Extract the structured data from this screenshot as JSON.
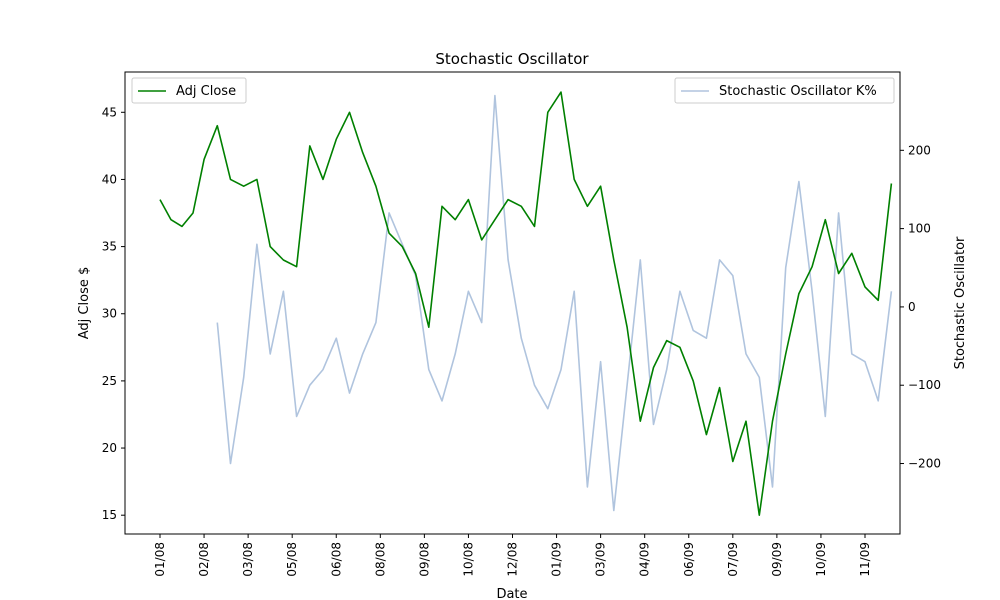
{
  "chart_data": {
    "type": "line",
    "title": "Stochastic Oscillator",
    "xlabel": "Date",
    "ylabel_left": "Adj Close $",
    "ylabel_right": "Stochastic Oscillator",
    "x_tick_labels": [
      "01/08",
      "02/08",
      "03/08",
      "05/08",
      "06/08",
      "08/08",
      "09/08",
      "10/08",
      "12/08",
      "01/09",
      "03/09",
      "04/09",
      "06/09",
      "07/09",
      "09/09",
      "10/09",
      "11/09"
    ],
    "ylim_left": [
      13.6,
      48.0
    ],
    "yticks_left": [
      15,
      20,
      25,
      30,
      35,
      40,
      45
    ],
    "ylim_right": [
      -290,
      300
    ],
    "yticks_right": [
      -200,
      -100,
      0,
      100,
      200
    ],
    "grid": false,
    "colors": {
      "adj_close": "#008000",
      "stochastic": "#b0c4de"
    },
    "series": [
      {
        "name": "Adj Close",
        "axis": "left",
        "x": [
          0.0,
          0.25,
          0.5,
          0.75,
          1.0,
          1.3,
          1.6,
          1.9,
          2.2,
          2.5,
          2.8,
          3.1,
          3.4,
          3.7,
          4.0,
          4.3,
          4.6,
          4.9,
          5.2,
          5.5,
          5.8,
          6.1,
          6.4,
          6.7,
          7.0,
          7.3,
          7.6,
          7.9,
          8.2,
          8.5,
          8.8,
          9.1,
          9.4,
          9.7,
          10.0,
          10.3,
          10.6,
          10.9,
          11.2,
          11.5,
          11.8,
          12.1,
          12.4,
          12.7,
          13.0,
          13.3,
          13.6,
          13.9,
          14.2,
          14.5,
          14.8,
          15.1,
          15.4,
          15.7,
          16.0,
          16.3,
          16.6
        ],
        "y": [
          38.5,
          37.0,
          36.5,
          37.5,
          41.5,
          44.0,
          40.0,
          39.5,
          40.0,
          35.0,
          34.0,
          33.5,
          42.5,
          40.0,
          43.0,
          45.0,
          42.0,
          39.5,
          36.0,
          35.0,
          33.0,
          29.0,
          38.0,
          37.0,
          38.5,
          35.5,
          37.0,
          38.5,
          38.0,
          36.5,
          45.0,
          46.5,
          40.0,
          38.0,
          39.5,
          34.0,
          29.0,
          22.0,
          26.0,
          28.0,
          27.5,
          25.0,
          21.0,
          24.5,
          19.0,
          22.0,
          15.0,
          22.0,
          27.0,
          31.5,
          33.5,
          37.0,
          33.0,
          34.5,
          32.0,
          31.0,
          39.7
        ]
      },
      {
        "name": "Stochastic Oscillator K%",
        "axis": "right",
        "x": [
          1.3,
          1.6,
          1.9,
          2.2,
          2.5,
          2.8,
          3.1,
          3.4,
          3.7,
          4.0,
          4.3,
          4.6,
          4.9,
          5.2,
          5.5,
          5.8,
          6.1,
          6.4,
          6.7,
          7.0,
          7.3,
          7.6,
          7.9,
          8.2,
          8.5,
          8.8,
          9.1,
          9.4,
          9.7,
          10.0,
          10.3,
          10.6,
          10.9,
          11.2,
          11.5,
          11.8,
          12.1,
          12.4,
          12.7,
          13.0,
          13.3,
          13.6,
          13.9,
          14.2,
          14.5,
          14.8,
          15.1,
          15.4,
          15.7,
          16.0,
          16.3,
          16.6
        ],
        "y": [
          -20,
          -200,
          -90,
          80,
          -60,
          20,
          -140,
          -100,
          -80,
          -40,
          -110,
          -60,
          -20,
          120,
          80,
          40,
          -80,
          -120,
          -60,
          20,
          -20,
          270,
          60,
          -40,
          -100,
          -130,
          -80,
          20,
          -230,
          -70,
          -260,
          -100,
          60,
          -150,
          -80,
          20,
          -30,
          -40,
          60,
          40,
          -60,
          -90,
          -230,
          50,
          160,
          20,
          -140,
          120,
          -60,
          -70,
          -120,
          20
        ]
      }
    ]
  }
}
